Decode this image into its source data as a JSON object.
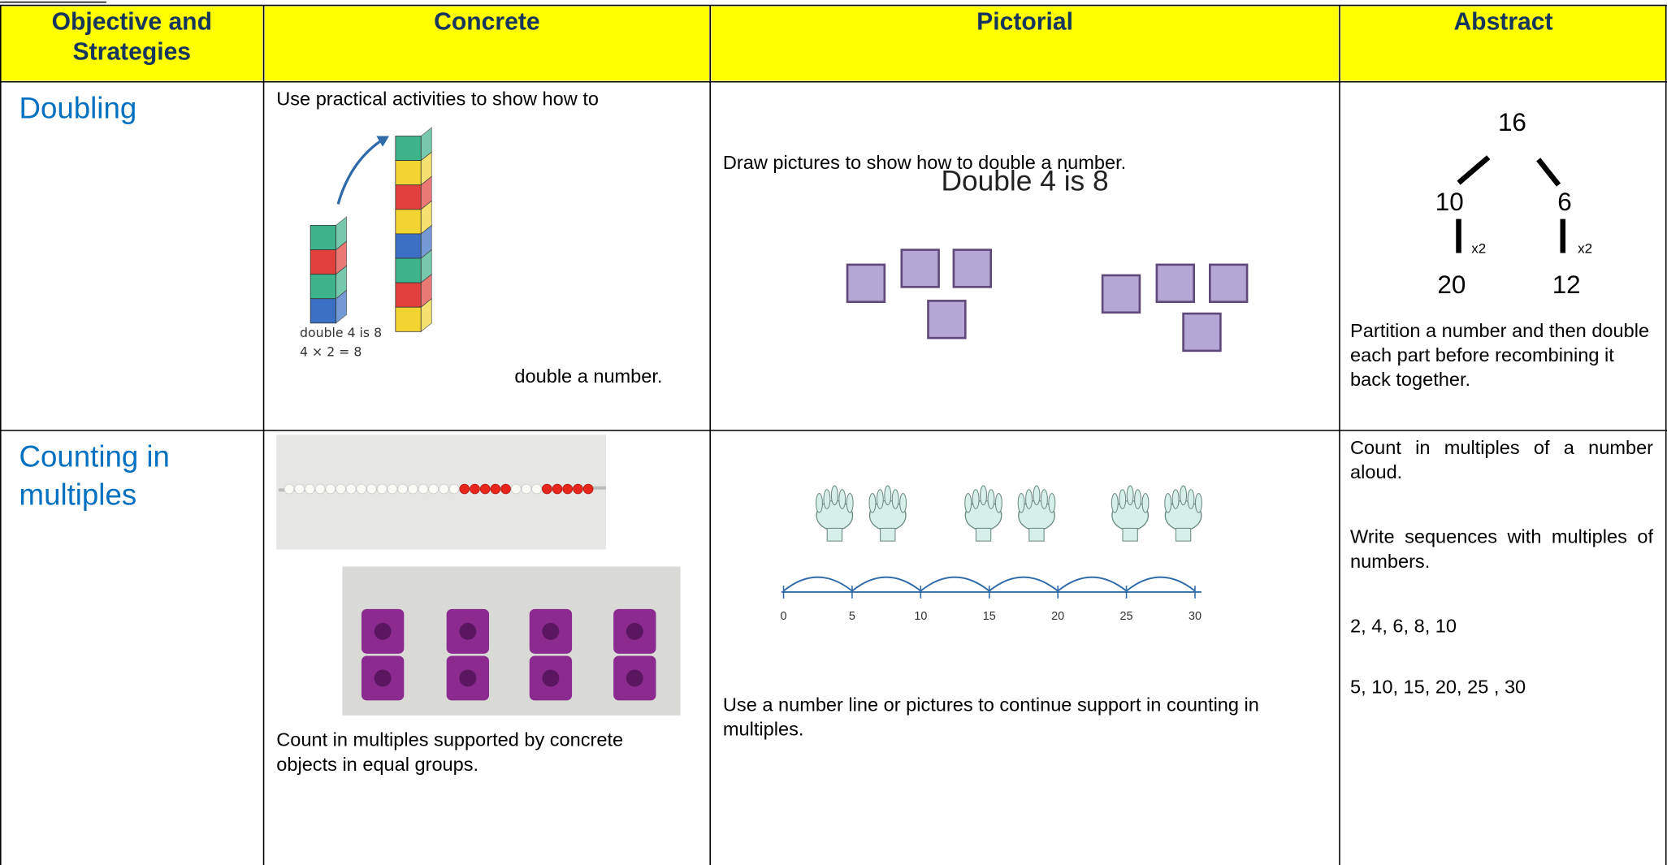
{
  "table": {
    "header": [
      "Objective and Strategies",
      "Concrete",
      "Pictorial",
      "Abstract"
    ],
    "rows": [
      {
        "objective": "Doubling",
        "concrete": {
          "text": [
            "Use practical activities to show how to",
            "double a number."
          ],
          "image_labels": [
            "double 4 is 8",
            "4 × 2 = 8"
          ]
        },
        "pictorial": {
          "text": "Draw pictures to show how to double a number.",
          "image_title": "Double 4 is 8"
        },
        "abstract": {
          "tree": [
            "16",
            "10",
            "6",
            "x2",
            "x2",
            "20",
            "12"
          ],
          "text": "Partition a number and then double each part before recombining it back together."
        }
      },
      {
        "objective": "Counting in multiples",
        "concrete": {
          "text": "Count in multiples supported by concrete objects in equal groups."
        },
        "pictorial": {
          "number_line": [
            "0",
            "5",
            "10",
            "15",
            "20",
            "25",
            "30"
          ],
          "text": "Use a number line or pictures to continue support in counting in multiples."
        },
        "abstract": {
          "text": [
            "Count in multiples of a number aloud.",
            "Write sequences with multiples of numbers.",
            "2, 4, 6, 8, 10",
            "5, 10, 15, 20, 25 , 30"
          ]
        }
      }
    ]
  }
}
